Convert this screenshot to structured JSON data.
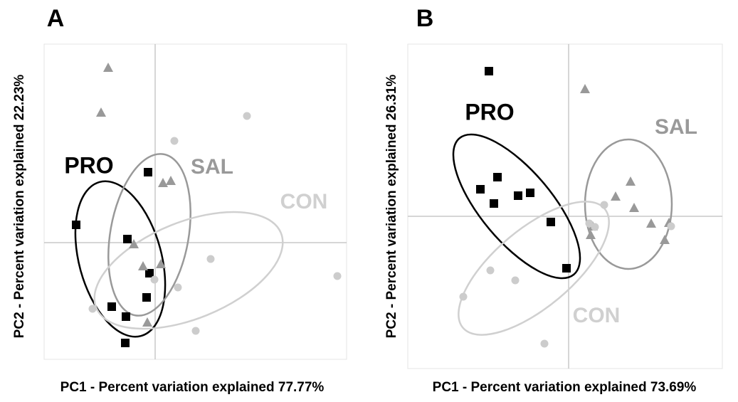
{
  "chart_data": [
    {
      "type": "scatter",
      "title": "A",
      "x_label": "PC1 - Percent variation explained 77.77%",
      "y_label": "PC2 - Percent variation explained 22.23%",
      "xlim": [
        -156,
        269
      ],
      "ylim": [
        -164,
        279
      ],
      "series": [
        {
          "name": "PRO",
          "color": "#000000",
          "marker": "square",
          "x": [
            -10,
            -111,
            -39,
            -8,
            -12,
            -61,
            -41,
            -42
          ],
          "y": [
            99,
            25,
            5,
            -43,
            -77,
            -90,
            -104,
            -141
          ],
          "ellipse": {
            "cx": -49,
            "cy": -23,
            "rx": 58,
            "ry": 112,
            "angle": 15
          }
        },
        {
          "name": "SAL",
          "color": "#999999",
          "marker": "triangle",
          "x": [
            -66,
            -76,
            11,
            22,
            -30,
            -17,
            8,
            -11
          ],
          "y": [
            246,
            183,
            84,
            87,
            -2,
            -33,
            -30,
            -112
          ],
          "ellipse": {
            "cx": -8,
            "cy": 11,
            "rx": 55,
            "ry": 115,
            "angle": -10
          }
        },
        {
          "name": "CON",
          "color": "#cccccc",
          "marker": "circle",
          "x": [
            129,
            27,
            78,
            32,
            -1,
            -88,
            57,
            256
          ],
          "y": [
            178,
            143,
            -23,
            -63,
            -52,
            -93,
            -124,
            -47
          ],
          "ellipse": {
            "cx": 47,
            "cy": -39,
            "rx": 140,
            "ry": 68,
            "angle": 22
          }
        }
      ]
    },
    {
      "type": "scatter",
      "title": "B",
      "x_label": "PC1 - Percent variation explained 73.69%",
      "y_label": "PC2 - Percent variation explained 26.31%",
      "xlim": [
        -226,
        216
      ],
      "ylim": [
        -214,
        242
      ],
      "series": [
        {
          "name": "PRO",
          "color": "#000000",
          "marker": "square",
          "x": [
            -112,
            -100,
            -124,
            -105,
            -71,
            -54,
            -25,
            -3
          ],
          "y": [
            204,
            55,
            38,
            18,
            29,
            33,
            -8,
            -73
          ],
          "ellipse": {
            "cx": -73,
            "cy": 14,
            "rx": 125,
            "ry": 50,
            "angle": -50
          }
        },
        {
          "name": "SAL",
          "color": "#999999",
          "marker": "triangle",
          "x": [
            23,
            87,
            66,
            92,
            116,
            141,
            34,
            31,
            135
          ],
          "y": [
            179,
            49,
            28,
            12,
            -10,
            -9,
            -14,
            -26,
            -33
          ],
          "ellipse": {
            "cx": 84,
            "cy": 17,
            "rx": 61,
            "ry": 91,
            "angle": 0
          }
        },
        {
          "name": "CON",
          "color": "#cccccc",
          "marker": "circle",
          "x": [
            50,
            29,
            37,
            144,
            -110,
            -75,
            -148,
            -34
          ],
          "y": [
            16,
            -10,
            -15,
            -14,
            -76,
            -90,
            -113,
            -179
          ],
          "ellipse": {
            "cx": -49,
            "cy": -73,
            "rx": 130,
            "ry": 55,
            "angle": 40
          }
        }
      ]
    }
  ]
}
